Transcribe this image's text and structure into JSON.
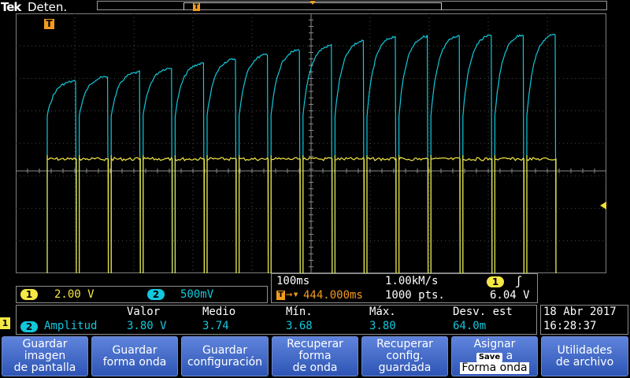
{
  "header": {
    "brand": "Tek",
    "status": "Deten.",
    "record_trigger_marker": "T"
  },
  "display": {
    "trigger_marker": "T",
    "trace_colors": {
      "ch1": "#f5e845",
      "ch2": "#12c8dc",
      "trigger": "#f39b1d"
    }
  },
  "channels": {
    "ch1": {
      "badge": "1",
      "scale": "2.00 V"
    },
    "ch2": {
      "badge": "2",
      "scale": "500mV"
    }
  },
  "horizontal": {
    "time_div": "100ms",
    "sample_rate": "1.00kM/s",
    "trig_source_badge": "1",
    "trig_slope": "ʃ",
    "position": "444.000ms",
    "record_length": "1000 pts.",
    "trig_level": "6.04 V",
    "t_icon": "T"
  },
  "measurement": {
    "headers": [
      "Valor",
      "Medio",
      "Mín.",
      "Máx.",
      "Desv. est"
    ],
    "channel_badge": "2",
    "name": "Amplitud",
    "values": [
      "3.80 V",
      "3.74",
      "3.68",
      "3.80",
      "64.0m"
    ]
  },
  "datetime": {
    "date": "18 Abr 2017",
    "time": "16:28:37"
  },
  "side_marker": "1",
  "menu": [
    {
      "lines": [
        "Guardar",
        "imagen",
        "de pantalla"
      ]
    },
    {
      "lines": [
        "Guardar",
        "forma onda"
      ]
    },
    {
      "lines": [
        "Guardar",
        "configuración"
      ]
    },
    {
      "lines": [
        "Recuperar",
        "forma",
        "de onda"
      ]
    },
    {
      "lines": [
        "Recuperar",
        "config.",
        "guardada"
      ]
    },
    {
      "title": "Asignar",
      "save_badge": "Save",
      "save_suffix": "a",
      "target": "Forma onda"
    },
    {
      "lines": [
        "Utilidades",
        "de archivo"
      ]
    }
  ]
}
